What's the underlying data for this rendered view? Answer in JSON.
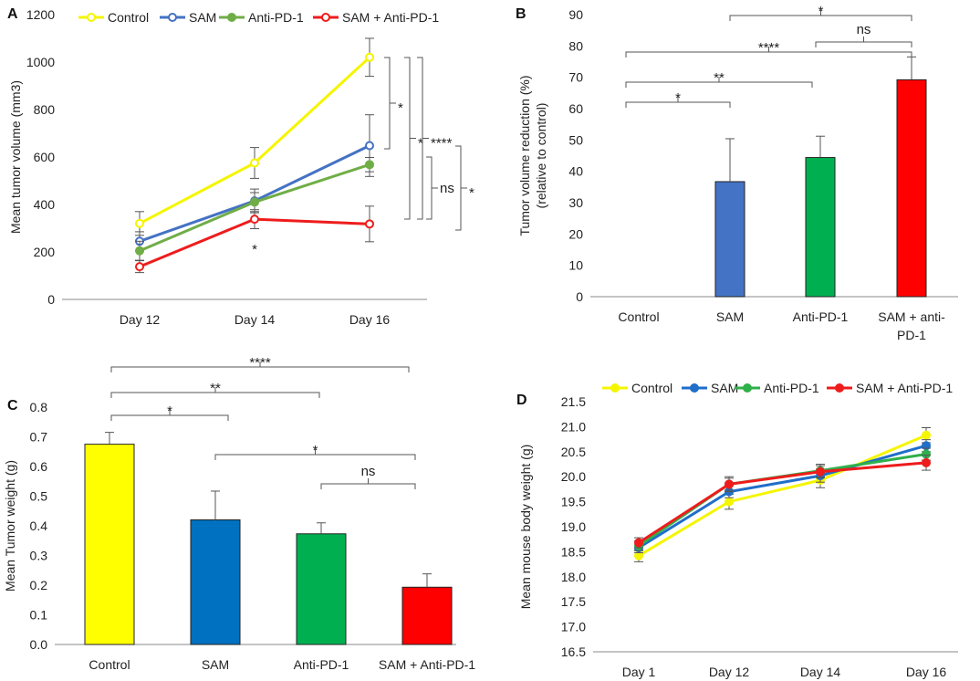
{
  "colors": {
    "Control": "#ffff00",
    "SAM": "#1f6ec9",
    "Anti-PD-1": "#3fb33f",
    "SAM + Anti-PD-1": "#ff1a1a"
  },
  "chart_data": [
    {
      "id": "A",
      "panel": "A",
      "type": "line",
      "ylabel": "Mean tumor volume (mm3)",
      "categories": [
        "Day 12",
        "Day 14",
        "Day 16"
      ],
      "ylim": [
        0,
        1200
      ],
      "yticks": [
        0,
        200,
        400,
        600,
        800,
        1000,
        1200
      ],
      "legend": [
        "Control",
        "SAM",
        "Anti-PD-1",
        "SAM + Anti-PD-1"
      ],
      "series": [
        {
          "name": "Control",
          "color": "#f5f500",
          "marker": "open",
          "values": [
            320,
            575,
            1020
          ],
          "err": [
            50,
            65,
            80
          ]
        },
        {
          "name": "SAM",
          "color": "#4472c4",
          "marker": "open",
          "values": [
            245,
            415,
            648
          ],
          "err": [
            40,
            50,
            130
          ]
        },
        {
          "name": "Anti-PD-1",
          "color": "#70ad47",
          "marker": "filled",
          "values": [
            205,
            410,
            568
          ],
          "err": [
            40,
            40,
            30
          ]
        },
        {
          "name": "SAM + Anti-PD-1",
          "color": "#ee1c1c",
          "marker": "open",
          "values": [
            138,
            338,
            318
          ],
          "err": [
            25,
            40,
            75
          ]
        }
      ],
      "annotations": [
        "*",
        "*",
        "*",
        "****",
        "ns",
        "*"
      ]
    },
    {
      "id": "B",
      "panel": "B",
      "type": "bar",
      "ylabel": "Tumor volume reduction (%)",
      "ylabel2": "(relative to control)",
      "categories": [
        "Control",
        "SAM",
        "Anti-PD-1",
        "SAM + anti-PD-1"
      ],
      "values": [
        0,
        36.7,
        44.4,
        69.2
      ],
      "err": [
        0,
        13.7,
        6.8,
        7.3
      ],
      "colors": [
        "#ffffff",
        "#4472c4",
        "#00b050",
        "#ff0000"
      ],
      "ylim": [
        0,
        90
      ],
      "yticks": [
        0,
        10,
        20,
        30,
        40,
        50,
        60,
        70,
        80,
        90
      ],
      "annotations": [
        "*",
        "**",
        "****",
        "*",
        "ns"
      ]
    },
    {
      "id": "C",
      "panel": "C",
      "type": "bar",
      "ylabel": "Mean Tumor weight (g)",
      "categories": [
        "Control",
        "SAM",
        "Anti-PD-1",
        "SAM + Anti-PD-1"
      ],
      "values": [
        0.675,
        0.42,
        0.373,
        0.193
      ],
      "err": [
        0.04,
        0.097,
        0.037,
        0.045
      ],
      "colors": [
        "#ffff00",
        "#0070c0",
        "#00b050",
        "#ff0000"
      ],
      "ylim": [
        0,
        0.8
      ],
      "yticks": [
        0,
        0.1,
        0.2,
        0.3,
        0.4,
        0.5,
        0.6,
        0.7,
        0.8
      ],
      "annotations": [
        "****",
        "**",
        "*",
        "*",
        "ns"
      ]
    },
    {
      "id": "D",
      "panel": "D",
      "type": "line",
      "ylabel": "Mean mouse body weight (g)",
      "categories": [
        "Day 1",
        "Day 12",
        "Day 14",
        "Day 16"
      ],
      "ylim": [
        16.5,
        21.5
      ],
      "yticks": [
        16.5,
        17.0,
        17.5,
        18.0,
        18.5,
        19.0,
        19.5,
        20.0,
        20.5,
        21.0,
        21.5
      ],
      "legend": [
        "Control",
        "SAM",
        "Anti-PD-1",
        "SAM + Anti-PD-1"
      ],
      "series": [
        {
          "name": "Control",
          "color": "#f5f500",
          "marker": "filled",
          "values": [
            18.42,
            19.5,
            19.93,
            20.83
          ],
          "err": [
            0.12,
            0.15,
            0.15,
            0.15
          ]
        },
        {
          "name": "SAM",
          "color": "#1f6ec9",
          "marker": "filled",
          "values": [
            18.58,
            19.7,
            20.02,
            20.62
          ],
          "err": [
            0.1,
            0.12,
            0.13,
            0.12
          ]
        },
        {
          "name": "Anti-PD-1",
          "color": "#2fb04a",
          "marker": "filled",
          "values": [
            18.62,
            19.85,
            20.12,
            20.45
          ],
          "err": [
            0.1,
            0.12,
            0.13,
            0.12
          ]
        },
        {
          "name": "SAM + Anti-PD-1",
          "color": "#ee1c1c",
          "marker": "filled",
          "values": [
            18.68,
            19.85,
            20.1,
            20.28
          ],
          "err": [
            0.1,
            0.15,
            0.12,
            0.15
          ]
        }
      ]
    }
  ]
}
